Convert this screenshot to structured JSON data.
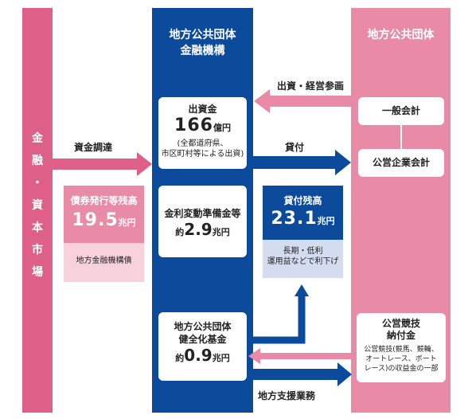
{
  "market": {
    "label": "金融・資本市場",
    "chars": [
      "金",
      "融",
      "・",
      "資",
      "本",
      "市",
      "場"
    ]
  },
  "center": {
    "title_line1": "地方公共団体",
    "title_line2": "金融機構"
  },
  "right": {
    "title": "地方公共団体"
  },
  "arrows": {
    "invest": "出資・経営参画",
    "funding": "資金調達",
    "lending": "貸付",
    "support": "地方支援業務"
  },
  "capital": {
    "title": "出資金",
    "value": "166",
    "unit": "億円",
    "note_line1": "(全都道府県、",
    "note_line2": "市区町村等による出資)"
  },
  "bonds": {
    "title": "債券発行等残高",
    "value": "19.5",
    "unit": "兆円",
    "sub": "地方金融機構債"
  },
  "reserve": {
    "title": "金利変動準備金等",
    "prefix": "約",
    "value": "2.9",
    "unit": "兆円"
  },
  "loans": {
    "title": "貸付残高",
    "value": "23.1",
    "unit": "兆円",
    "sub_line1": "長期・低利",
    "sub_line2": "運用益などで利下げ"
  },
  "fund": {
    "title_line1": "地方公共団体",
    "title_line2": "健全化基金",
    "prefix": "約",
    "value": "0.9",
    "unit": "兆円"
  },
  "general_account": "一般会計",
  "enterprise_account": "公営企業会計",
  "race": {
    "title_line1": "公営競技",
    "title_line2": "納付金",
    "note_line1": "公営競技(競馬、競輪、",
    "note_line2": "オートレース、ボート",
    "note_line3": "レース)の収益金の一部"
  },
  "colors": {
    "navy": "#0c4a9c",
    "pink": "#de5f88",
    "light_pink": "#e98aa7",
    "pale_pink": "#f7d2dd",
    "pale_blue": "#d3ddef"
  }
}
